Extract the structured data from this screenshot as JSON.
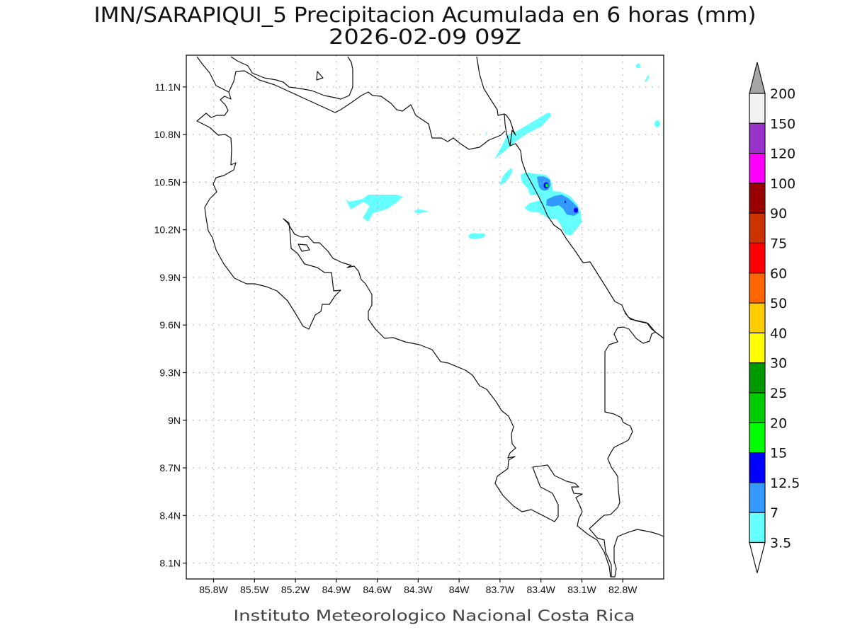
{
  "title": {
    "line1": "IMN/SARAPIQUI_5 Precipitacion Acumulada en 6 horas (mm)",
    "line2": "2026-02-09 09Z"
  },
  "footer": "Instituto Meteorologico Nacional Costa Rica",
  "map": {
    "lon_range": [
      -86.0,
      -82.5
    ],
    "lat_range": [
      8.0,
      11.3
    ],
    "lon_ticks": [
      {
        "value": -85.8,
        "label": "85.8W"
      },
      {
        "value": -85.5,
        "label": "85.5W"
      },
      {
        "value": -85.2,
        "label": "85.2W"
      },
      {
        "value": -84.9,
        "label": "84.9W"
      },
      {
        "value": -84.6,
        "label": "84.6W"
      },
      {
        "value": -84.3,
        "label": "84.3W"
      },
      {
        "value": -84.0,
        "label": "84W"
      },
      {
        "value": -83.7,
        "label": "83.7W"
      },
      {
        "value": -83.4,
        "label": "83.4W"
      },
      {
        "value": -83.1,
        "label": "83.1W"
      },
      {
        "value": -82.8,
        "label": "82.8W"
      }
    ],
    "lat_ticks": [
      {
        "value": 11.1,
        "label": "11.1N"
      },
      {
        "value": 10.8,
        "label": "10.8N"
      },
      {
        "value": 10.5,
        "label": "10.5N"
      },
      {
        "value": 10.2,
        "label": "10.2N"
      },
      {
        "value": 9.9,
        "label": "9.9N"
      },
      {
        "value": 9.6,
        "label": "9.6N"
      },
      {
        "value": 9.3,
        "label": "9.3N"
      },
      {
        "value": 9.0,
        "label": "9N"
      },
      {
        "value": 8.7,
        "label": "8.7N"
      },
      {
        "value": 8.4,
        "label": "8.4N"
      },
      {
        "value": 8.1,
        "label": "8.1N"
      }
    ]
  },
  "legend": {
    "over_color": "#a6a6a6",
    "under_color": "#ffffff",
    "bins": [
      {
        "label": "200",
        "color": "#f2f2f2"
      },
      {
        "label": "150",
        "color": "#9933cc"
      },
      {
        "label": "120",
        "color": "#ff00ff"
      },
      {
        "label": "100",
        "color": "#990000"
      },
      {
        "label": "90",
        "color": "#cc3300"
      },
      {
        "label": "75",
        "color": "#ff0000"
      },
      {
        "label": "60",
        "color": "#ff6600"
      },
      {
        "label": "50",
        "color": "#ffcc00"
      },
      {
        "label": "40",
        "color": "#ffff00"
      },
      {
        "label": "30",
        "color": "#009900"
      },
      {
        "label": "25",
        "color": "#00cc00"
      },
      {
        "label": "20",
        "color": "#00ff00"
      },
      {
        "label": "15",
        "color": "#0000ff"
      },
      {
        "label": "12.5",
        "color": "#3399ff"
      },
      {
        "label": "7",
        "color": "#66ffff"
      }
    ],
    "bottom_label": "3.5"
  }
}
